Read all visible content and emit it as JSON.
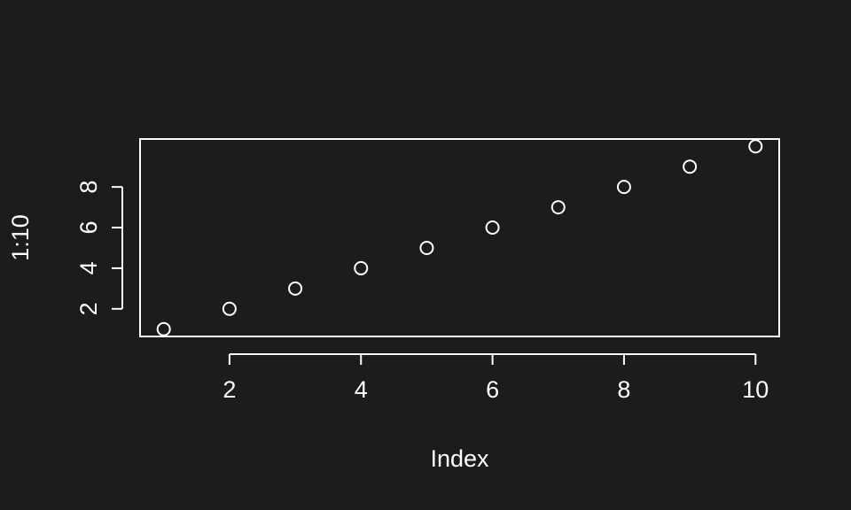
{
  "theme": {
    "background": "#1c1c1c",
    "foreground": "#ffffff"
  },
  "chart_data": {
    "type": "scatter",
    "title": "",
    "xlabel": "Index",
    "ylabel": "1:10",
    "x": [
      1,
      2,
      3,
      4,
      5,
      6,
      7,
      8,
      9,
      10
    ],
    "y": [
      1,
      2,
      3,
      4,
      5,
      6,
      7,
      8,
      9,
      10
    ],
    "xlim": [
      0.64,
      10.36
    ],
    "ylim": [
      0.64,
      10.36
    ],
    "xticks": [
      2,
      4,
      6,
      8,
      10
    ],
    "xtick_labels": [
      "2",
      "4",
      "6",
      "8",
      "10"
    ],
    "yticks": [
      2,
      4,
      6,
      8
    ],
    "ytick_labels": [
      "2",
      "4",
      "6",
      "8"
    ],
    "marker": "open-circle",
    "grid": false,
    "legend": "none"
  }
}
